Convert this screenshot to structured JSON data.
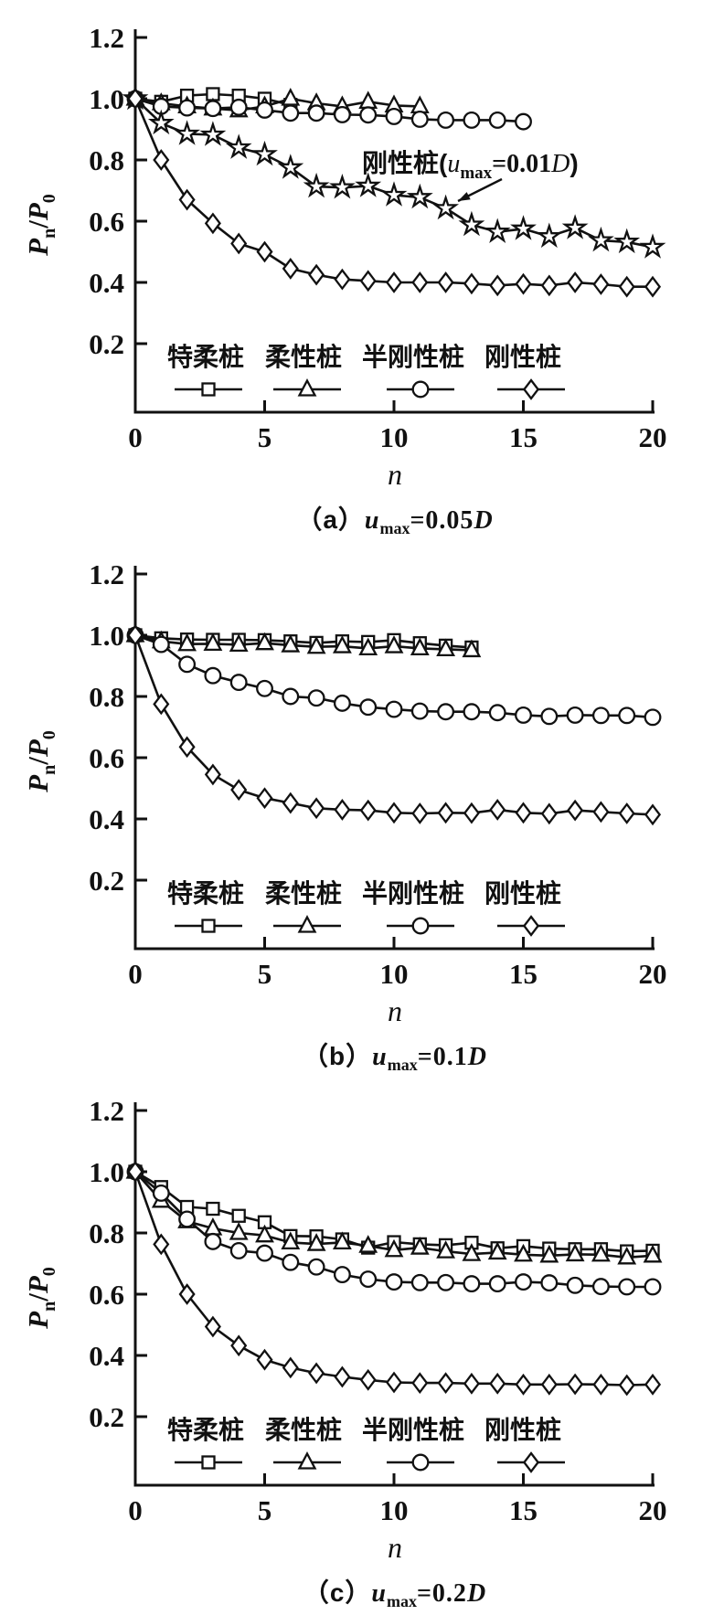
{
  "page": {
    "background": "#ffffff",
    "ink": "#111111"
  },
  "axes": {
    "xlabel": "n",
    "ylabel": "Pn/P0",
    "ylabel_parts": {
      "P1": "P",
      "sub1": "n",
      "slash": "/",
      "P2": "P",
      "sub2": "0"
    },
    "y_tick_labels": [
      "1.2",
      "1.0",
      "0.8",
      "0.6",
      "0.4",
      "0.2"
    ],
    "x_tick_labels": [
      "0",
      "5",
      "10",
      "15",
      "20"
    ]
  },
  "legend": {
    "labels": [
      "特柔桩",
      "柔性桩",
      "半刚性桩",
      "刚性桩"
    ],
    "markers": [
      "square",
      "triangle",
      "circle",
      "diamond"
    ]
  },
  "chart_data": [
    {
      "id": "a",
      "type": "line",
      "title": "（a）umax=0.05D",
      "caption": {
        "index": "（a）",
        "var": "u",
        "sub": "max",
        "value": "=0.05",
        "suffix": "D"
      },
      "xlabel": "n",
      "ylabel": "Pn/P0",
      "xlim": [
        0,
        20
      ],
      "ylim": [
        0,
        1.2
      ],
      "x_ticks": [
        0,
        5,
        10,
        15,
        20
      ],
      "y_ticks": [
        1.2,
        1.0,
        0.8,
        0.6,
        0.4,
        0.2
      ],
      "grid": false,
      "legend_position": "bottom-inside",
      "annotation": {
        "text_prefix": "刚性桩(",
        "var": "u",
        "sub": "max",
        "value": "=0.01",
        "d": "D",
        "close": ")"
      },
      "series": [
        {
          "name": "特柔桩",
          "marker": "square",
          "x": [
            0,
            1,
            2,
            3,
            4,
            5,
            6
          ],
          "y": [
            1.0,
            0.99,
            1.01,
            1.015,
            1.01,
            1.0,
            0.98
          ]
        },
        {
          "name": "柔性桩",
          "marker": "triangle",
          "x": [
            0,
            1,
            2,
            3,
            4,
            5,
            6,
            7,
            8,
            9,
            10,
            11
          ],
          "y": [
            1.0,
            0.985,
            0.975,
            0.968,
            0.962,
            0.975,
            1.0,
            0.985,
            0.975,
            0.99,
            0.978,
            0.975
          ]
        },
        {
          "name": "半刚性桩",
          "marker": "circle",
          "x": [
            0,
            1,
            2,
            3,
            4,
            5,
            6,
            7,
            8,
            9,
            10,
            11,
            12,
            13,
            14,
            15
          ],
          "y": [
            1.0,
            0.975,
            0.97,
            0.968,
            0.972,
            0.963,
            0.953,
            0.953,
            0.948,
            0.947,
            0.942,
            0.933,
            0.93,
            0.93,
            0.93,
            0.925
          ]
        },
        {
          "name": "刚性桩(umax=0.01D)",
          "marker": "star",
          "x": [
            0,
            1,
            2,
            3,
            4,
            5,
            6,
            7,
            8,
            9,
            10,
            11,
            12,
            13,
            14,
            15,
            16,
            17,
            18,
            19,
            20
          ],
          "y": [
            1.0,
            0.92,
            0.885,
            0.882,
            0.84,
            0.818,
            0.775,
            0.713,
            0.71,
            0.715,
            0.685,
            0.678,
            0.642,
            0.588,
            0.565,
            0.575,
            0.55,
            0.578,
            0.537,
            0.532,
            0.515
          ]
        },
        {
          "name": "刚性桩",
          "marker": "diamond",
          "x": [
            0,
            1,
            2,
            3,
            4,
            5,
            6,
            7,
            8,
            9,
            10,
            11,
            12,
            13,
            14,
            15,
            16,
            17,
            18,
            19,
            20
          ],
          "y": [
            1.0,
            0.8,
            0.67,
            0.593,
            0.527,
            0.5,
            0.445,
            0.425,
            0.41,
            0.405,
            0.4,
            0.4,
            0.4,
            0.396,
            0.39,
            0.395,
            0.39,
            0.4,
            0.394,
            0.386,
            0.386
          ]
        }
      ]
    },
    {
      "id": "b",
      "type": "line",
      "title": "（b）umax=0.1D",
      "caption": {
        "index": "（b）",
        "var": "u",
        "sub": "max",
        "value": "=0.1",
        "suffix": "D"
      },
      "xlabel": "n",
      "ylabel": "Pn/P0",
      "xlim": [
        0,
        20
      ],
      "ylim": [
        0,
        1.2
      ],
      "x_ticks": [
        0,
        5,
        10,
        15,
        20
      ],
      "y_ticks": [
        1.2,
        1.0,
        0.8,
        0.6,
        0.4,
        0.2
      ],
      "grid": false,
      "legend_position": "bottom-inside",
      "series": [
        {
          "name": "特柔桩",
          "marker": "square",
          "x": [
            0,
            1,
            2,
            3,
            4,
            5,
            6,
            7,
            8,
            9,
            10,
            11,
            12,
            13
          ],
          "y": [
            1.0,
            0.99,
            0.986,
            0.985,
            0.985,
            0.984,
            0.98,
            0.975,
            0.98,
            0.978,
            0.984,
            0.974,
            0.966,
            0.96
          ]
        },
        {
          "name": "柔性桩",
          "marker": "triangle",
          "x": [
            0,
            1,
            2,
            3,
            4,
            5,
            6,
            7,
            8,
            9,
            10,
            11,
            12,
            13
          ],
          "y": [
            1.0,
            0.98,
            0.971,
            0.972,
            0.969,
            0.974,
            0.967,
            0.962,
            0.964,
            0.957,
            0.964,
            0.957,
            0.954,
            0.951
          ]
        },
        {
          "name": "半刚性桩",
          "marker": "circle",
          "x": [
            0,
            1,
            2,
            3,
            4,
            5,
            6,
            7,
            8,
            9,
            10,
            11,
            12,
            13,
            14,
            15,
            16,
            17,
            18,
            19,
            20
          ],
          "y": [
            1.0,
            0.97,
            0.905,
            0.868,
            0.846,
            0.826,
            0.8,
            0.795,
            0.778,
            0.765,
            0.758,
            0.752,
            0.75,
            0.75,
            0.747,
            0.739,
            0.735,
            0.739,
            0.738,
            0.738,
            0.732
          ]
        },
        {
          "name": "刚性桩",
          "marker": "diamond",
          "x": [
            0,
            1,
            2,
            3,
            4,
            5,
            6,
            7,
            8,
            9,
            10,
            11,
            12,
            13,
            14,
            15,
            16,
            17,
            18,
            19,
            20
          ],
          "y": [
            1.0,
            0.775,
            0.635,
            0.545,
            0.495,
            0.468,
            0.452,
            0.435,
            0.43,
            0.428,
            0.42,
            0.418,
            0.42,
            0.419,
            0.43,
            0.42,
            0.417,
            0.428,
            0.423,
            0.418,
            0.414
          ]
        }
      ]
    },
    {
      "id": "c",
      "type": "line",
      "title": "（c）umax=0.2D",
      "caption": {
        "index": "（c）",
        "var": "u",
        "sub": "max",
        "value": "=0.2",
        "suffix": "D"
      },
      "xlabel": "n",
      "ylabel": "Pn/P0",
      "xlim": [
        0,
        20
      ],
      "ylim": [
        0,
        1.2
      ],
      "x_ticks": [
        0,
        5,
        10,
        15,
        20
      ],
      "y_ticks": [
        1.2,
        1.0,
        0.8,
        0.6,
        0.4,
        0.2
      ],
      "grid": false,
      "legend_position": "bottom-inside",
      "series": [
        {
          "name": "特柔桩",
          "marker": "square",
          "x": [
            0,
            1,
            2,
            3,
            4,
            5,
            6,
            7,
            8,
            9,
            10,
            11,
            12,
            13,
            14,
            15,
            16,
            17,
            18,
            19,
            20
          ],
          "y": [
            1.0,
            0.95,
            0.885,
            0.879,
            0.856,
            0.835,
            0.79,
            0.789,
            0.779,
            0.752,
            0.77,
            0.763,
            0.76,
            0.768,
            0.75,
            0.757,
            0.749,
            0.747,
            0.747,
            0.74,
            0.742
          ]
        },
        {
          "name": "柔性桩",
          "marker": "triangle",
          "x": [
            0,
            1,
            2,
            3,
            4,
            5,
            6,
            7,
            8,
            9,
            10,
            11,
            12,
            13,
            14,
            15,
            16,
            17,
            18,
            19,
            20
          ],
          "y": [
            1.0,
            0.905,
            0.838,
            0.815,
            0.8,
            0.792,
            0.769,
            0.764,
            0.769,
            0.758,
            0.744,
            0.752,
            0.74,
            0.731,
            0.736,
            0.729,
            0.726,
            0.73,
            0.729,
            0.72,
            0.726
          ]
        },
        {
          "name": "半刚性桩",
          "marker": "circle",
          "x": [
            0,
            1,
            2,
            3,
            4,
            5,
            6,
            7,
            8,
            9,
            10,
            11,
            12,
            13,
            14,
            15,
            16,
            17,
            18,
            19,
            20
          ],
          "y": [
            1.0,
            0.93,
            0.845,
            0.772,
            0.742,
            0.734,
            0.704,
            0.689,
            0.664,
            0.649,
            0.64,
            0.638,
            0.638,
            0.634,
            0.634,
            0.64,
            0.637,
            0.629,
            0.625,
            0.624,
            0.624
          ]
        },
        {
          "name": "刚性桩",
          "marker": "diamond",
          "x": [
            0,
            1,
            2,
            3,
            4,
            5,
            6,
            7,
            8,
            9,
            10,
            11,
            12,
            13,
            14,
            15,
            16,
            17,
            18,
            19,
            20
          ],
          "y": [
            1.0,
            0.763,
            0.6,
            0.494,
            0.432,
            0.386,
            0.36,
            0.342,
            0.33,
            0.32,
            0.312,
            0.31,
            0.31,
            0.308,
            0.308,
            0.305,
            0.305,
            0.306,
            0.305,
            0.303,
            0.305
          ]
        }
      ]
    }
  ]
}
